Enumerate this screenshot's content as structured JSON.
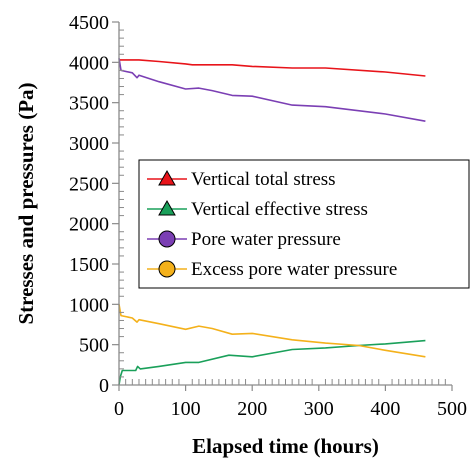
{
  "chart_data": {
    "type": "line",
    "title": "",
    "xlabel": "Elapsed time (hours)",
    "ylabel": "Stresses and pressures (Pa)",
    "xlim": [
      0,
      500
    ],
    "ylim": [
      0,
      4500
    ],
    "x_ticks": [
      0,
      100,
      200,
      300,
      400,
      500
    ],
    "y_ticks": [
      0,
      500,
      1000,
      1500,
      2000,
      2500,
      3000,
      3500,
      4000,
      4500
    ],
    "x_tick_labels": [
      "0",
      "100",
      "200",
      "300",
      "400",
      "500"
    ],
    "y_tick_labels": [
      "0",
      "500",
      "1000",
      "1500",
      "2000",
      "2500",
      "3000",
      "3500",
      "4000",
      "4500"
    ],
    "grid": false,
    "legend_placement": "center",
    "series": [
      {
        "name": "Vertical total stress",
        "color": "#e8141a",
        "marker": "triangle",
        "points": [
          [
            0,
            4030
          ],
          [
            10,
            4030
          ],
          [
            30,
            4030
          ],
          [
            60,
            4010
          ],
          [
            100,
            3980
          ],
          [
            110,
            3970
          ],
          [
            130,
            3970
          ],
          [
            170,
            3970
          ],
          [
            200,
            3950
          ],
          [
            260,
            3930
          ],
          [
            310,
            3930
          ],
          [
            400,
            3880
          ],
          [
            460,
            3830
          ]
        ]
      },
      {
        "name": "Vertical effective stress",
        "color": "#1aa05a",
        "marker": "triangle",
        "points": [
          [
            0,
            0
          ],
          [
            2,
            100
          ],
          [
            5,
            180
          ],
          [
            15,
            180
          ],
          [
            25,
            180
          ],
          [
            28,
            230
          ],
          [
            32,
            200
          ],
          [
            60,
            230
          ],
          [
            100,
            280
          ],
          [
            120,
            280
          ],
          [
            165,
            370
          ],
          [
            200,
            350
          ],
          [
            260,
            440
          ],
          [
            310,
            460
          ],
          [
            360,
            490
          ],
          [
            400,
            510
          ],
          [
            460,
            550
          ]
        ]
      },
      {
        "name": "Pore water pressure",
        "color": "#7b3fb4",
        "marker": "circle",
        "points": [
          [
            0,
            4050
          ],
          [
            3,
            3900
          ],
          [
            20,
            3870
          ],
          [
            27,
            3810
          ],
          [
            30,
            3840
          ],
          [
            60,
            3760
          ],
          [
            100,
            3670
          ],
          [
            120,
            3680
          ],
          [
            140,
            3650
          ],
          [
            170,
            3590
          ],
          [
            200,
            3580
          ],
          [
            260,
            3470
          ],
          [
            310,
            3450
          ],
          [
            400,
            3360
          ],
          [
            460,
            3270
          ]
        ]
      },
      {
        "name": "Excess pore water pressure",
        "color": "#f4b11b",
        "marker": "circle",
        "points": [
          [
            0,
            1000
          ],
          [
            3,
            860
          ],
          [
            20,
            830
          ],
          [
            27,
            780
          ],
          [
            30,
            810
          ],
          [
            60,
            760
          ],
          [
            100,
            690
          ],
          [
            120,
            730
          ],
          [
            140,
            700
          ],
          [
            170,
            630
          ],
          [
            200,
            640
          ],
          [
            260,
            560
          ],
          [
            310,
            520
          ],
          [
            360,
            490
          ],
          [
            400,
            430
          ],
          [
            460,
            350
          ]
        ]
      }
    ]
  }
}
